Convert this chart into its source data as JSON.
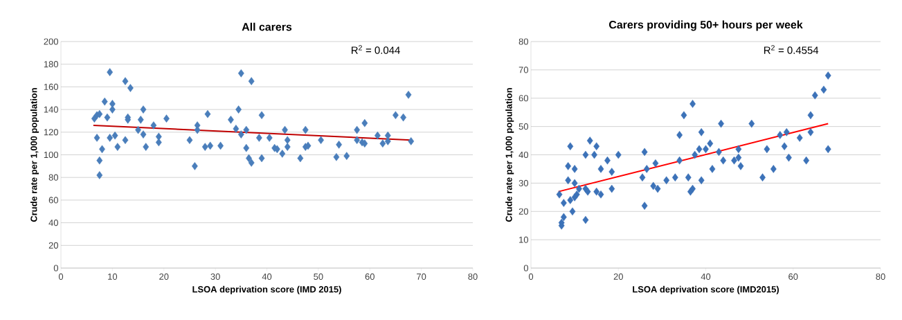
{
  "chart_data": [
    {
      "type": "scatter",
      "title": "All carers",
      "xlabel": "LSOA deprivation score (IMD 2015)",
      "ylabel": "Crude rate per 1,000 population",
      "xlim": [
        0,
        80
      ],
      "ylim": [
        0,
        200
      ],
      "xticks": [
        0,
        10,
        20,
        30,
        40,
        50,
        60,
        70,
        80
      ],
      "yticks": [
        0,
        20,
        40,
        60,
        80,
        100,
        120,
        140,
        160,
        180,
        200
      ],
      "grid": "y",
      "annotations": [
        "R$^{2}$ = 0.044"
      ],
      "series": [
        {
          "marker": "diamond",
          "color": "#4a7ebb",
          "x": [
            6.5,
            7,
            7.5,
            7,
            7.5,
            8,
            7.5,
            8.5,
            9,
            9.5,
            9.5,
            10,
            10,
            10.5,
            11,
            12.5,
            12.5,
            13,
            13,
            13.5,
            15,
            15.5,
            16,
            16,
            16.5,
            18,
            19,
            19,
            20.5,
            25,
            26,
            26.5,
            26.5,
            28,
            28.5,
            29,
            31,
            33,
            34,
            34.5,
            35,
            35,
            36,
            36,
            36.5,
            37,
            37,
            38.5,
            39,
            39,
            40.5,
            41.5,
            42,
            43,
            43.5,
            44,
            44,
            46.5,
            47.5,
            47.5,
            48,
            50.5,
            53.5,
            54,
            55.5,
            57.5,
            57.5,
            58.5,
            59,
            59,
            61.5,
            62.5,
            63.5,
            63.5,
            65,
            66.5,
            67.5,
            68
          ],
          "values": [
            132,
            135,
            136,
            115,
            95,
            105,
            82,
            147,
            133,
            173,
            115,
            145,
            140,
            117,
            107,
            165,
            113,
            133,
            131,
            159,
            122,
            131,
            118,
            140,
            107,
            126,
            116,
            111,
            132,
            113,
            90,
            126,
            122,
            107,
            136,
            108,
            108,
            131,
            123,
            140,
            118,
            172,
            122,
            106,
            97,
            93,
            165,
            115,
            135,
            97,
            115,
            106,
            105,
            101,
            122,
            113,
            107,
            97,
            122,
            107,
            108,
            113,
            98,
            109,
            99,
            122,
            113,
            111,
            128,
            110,
            117,
            110,
            117,
            112,
            135,
            133,
            153,
            112
          ]
        },
        {
          "type": "line",
          "marker": "none",
          "color": "#c00000",
          "x": [
            6.3,
            68
          ],
          "values": [
            126,
            113
          ]
        }
      ]
    },
    {
      "type": "scatter",
      "title": "Carers providing 50+ hours per week",
      "xlabel": "LSOA deprivation score (IMD2015)",
      "ylabel": "Crude rate per 1,000 population",
      "xlim": [
        0,
        80
      ],
      "ylim": [
        0,
        80
      ],
      "xticks": [
        0,
        20,
        40,
        60,
        80
      ],
      "yticks": [
        0,
        10,
        20,
        30,
        40,
        50,
        60,
        70,
        80
      ],
      "grid": "y",
      "annotations": [
        "R$^{2}$ = 0.4554"
      ],
      "series": [
        {
          "marker": "diamond",
          "color": "#3c72b8",
          "x": [
            6.5,
            7,
            7,
            7.5,
            7.5,
            8.5,
            8.5,
            9,
            9,
            9.5,
            10,
            10,
            10,
            10.5,
            11,
            12.5,
            12.5,
            12.5,
            13,
            13.5,
            14.5,
            15,
            15,
            16,
            16,
            17.5,
            18.5,
            18.5,
            20,
            25.5,
            26,
            26,
            26.5,
            28,
            28.5,
            29,
            31,
            33,
            34,
            34,
            35,
            36,
            36.5,
            37,
            37,
            37.5,
            38.5,
            39,
            39,
            40,
            41,
            41.5,
            43,
            43.5,
            44,
            46.5,
            47.5,
            47.5,
            48,
            50.5,
            53,
            54,
            55.5,
            57,
            58,
            58.5,
            59,
            61.5,
            63,
            64,
            64,
            65,
            67,
            68,
            68
          ],
          "values": [
            26,
            16,
            15,
            18,
            23,
            31,
            36,
            24,
            43,
            20,
            35,
            30,
            25,
            26,
            28,
            17,
            28,
            40,
            27,
            45,
            40,
            43,
            27,
            26,
            35,
            38,
            34,
            28,
            40,
            32,
            22,
            41,
            35,
            29,
            37,
            28,
            31,
            32,
            38,
            47,
            54,
            32,
            27,
            58,
            28,
            40,
            42,
            31,
            48,
            42,
            44,
            35,
            41,
            51,
            38,
            38,
            42,
            39,
            36,
            51,
            32,
            42,
            35,
            47,
            43,
            48,
            39,
            46,
            38,
            54,
            48,
            61,
            63,
            68,
            42
          ]
        },
        {
          "type": "line",
          "marker": "none",
          "color": "#ff0000",
          "x": [
            6.3,
            68
          ],
          "values": [
            27,
            51
          ]
        }
      ]
    }
  ]
}
